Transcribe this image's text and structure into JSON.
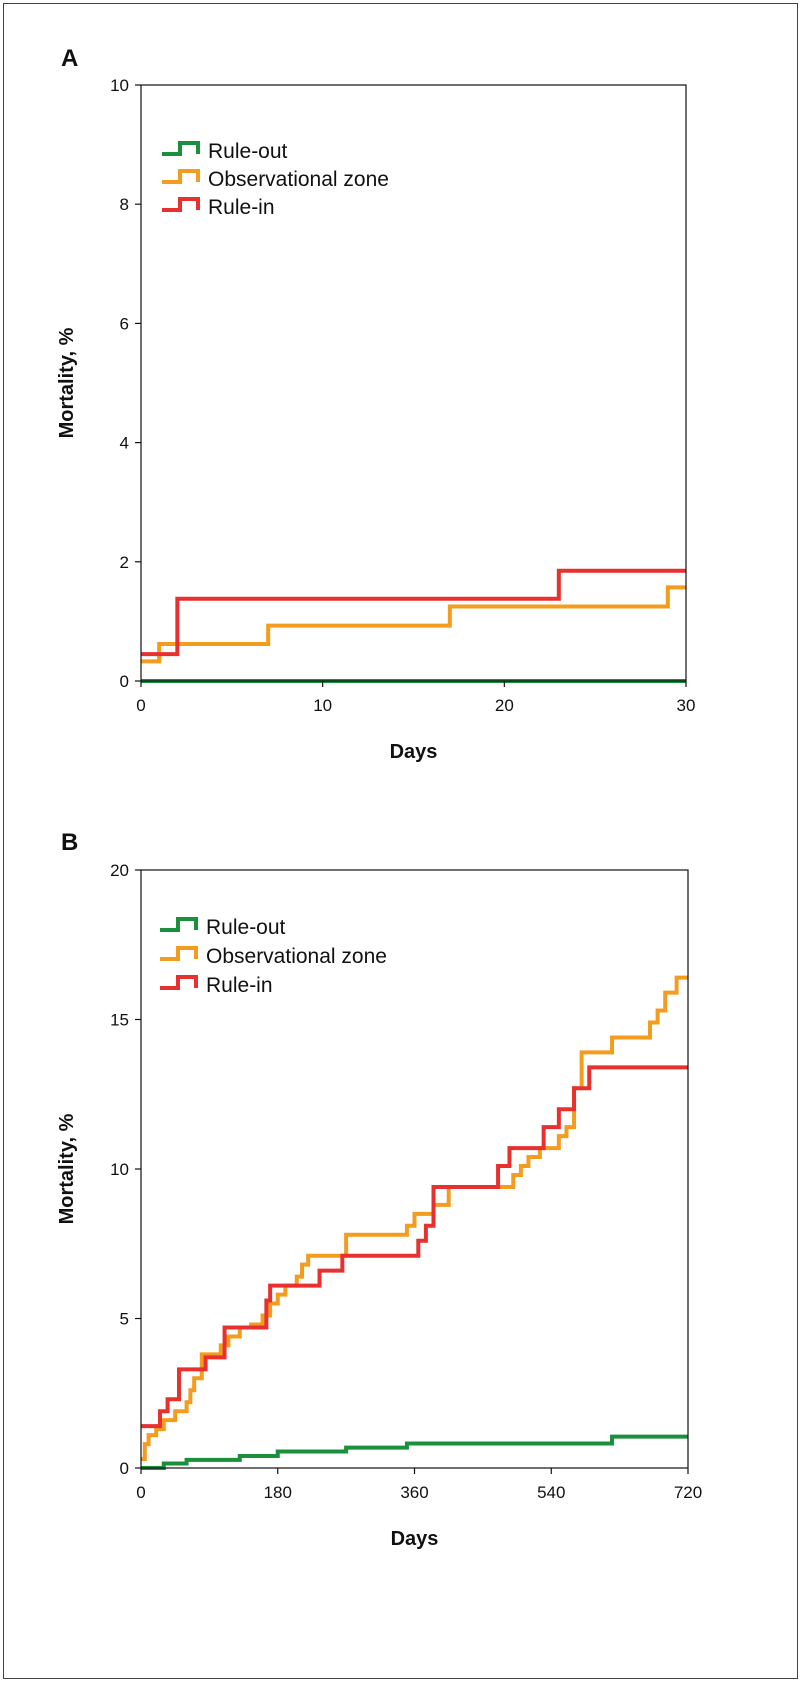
{
  "chart_data": [
    {
      "panel_label": "A",
      "type": "line",
      "step": true,
      "xlabel": "Days",
      "ylabel": "Mortality, %",
      "xlim": [
        0,
        30
      ],
      "ylim": [
        0,
        10
      ],
      "xticks": [
        0,
        10,
        20,
        30
      ],
      "yticks": [
        0,
        2,
        4,
        6,
        8,
        10
      ],
      "grid": false,
      "legend_position": "top-left",
      "series": [
        {
          "name": "Rule-out",
          "color": "#1a8f3c",
          "x": [
            0,
            30
          ],
          "y": [
            0,
            0
          ]
        },
        {
          "name": "Observational zone",
          "color": "#f39c1e",
          "x": [
            0,
            1,
            7,
            17,
            29,
            30
          ],
          "y": [
            0.33,
            0.62,
            0.93,
            1.25,
            1.57,
            1.57
          ]
        },
        {
          "name": "Rule-in",
          "color": "#e8312e",
          "x": [
            0,
            2,
            23,
            30
          ],
          "y": [
            0.45,
            1.38,
            1.85,
            1.85
          ]
        }
      ]
    },
    {
      "panel_label": "B",
      "type": "line",
      "step": true,
      "xlabel": "Days",
      "ylabel": "Mortality, %",
      "xlim": [
        0,
        720
      ],
      "ylim": [
        0,
        20
      ],
      "xticks": [
        0,
        180,
        360,
        540,
        720
      ],
      "yticks": [
        0,
        5,
        10,
        15,
        20
      ],
      "grid": false,
      "legend_position": "top-left",
      "series": [
        {
          "name": "Rule-out",
          "color": "#1a8f3c",
          "x": [
            0,
            30,
            60,
            130,
            180,
            270,
            350,
            620,
            720
          ],
          "y": [
            0,
            0.15,
            0.27,
            0.4,
            0.55,
            0.68,
            0.82,
            1.05,
            1.05
          ]
        },
        {
          "name": "Observational zone",
          "color": "#f39c1e",
          "x": [
            0,
            5,
            10,
            20,
            30,
            45,
            60,
            65,
            70,
            80,
            105,
            115,
            130,
            145,
            160,
            170,
            180,
            190,
            205,
            212,
            220,
            240,
            270,
            350,
            360,
            370,
            385,
            405,
            480,
            490,
            500,
            510,
            525,
            550,
            560,
            570,
            580,
            620,
            670,
            680,
            690,
            705,
            720
          ],
          "y": [
            0.3,
            0.8,
            1.1,
            1.3,
            1.6,
            1.9,
            2.2,
            2.6,
            3.0,
            3.8,
            4.1,
            4.4,
            4.7,
            4.8,
            5.1,
            5.5,
            5.8,
            6.1,
            6.4,
            6.8,
            7.1,
            7.1,
            7.8,
            8.1,
            8.5,
            8.5,
            8.8,
            9.4,
            9.4,
            9.8,
            10.1,
            10.4,
            10.7,
            11.1,
            11.4,
            12.7,
            13.9,
            14.4,
            14.9,
            15.3,
            15.9,
            16.4,
            16.4
          ]
        },
        {
          "name": "Rule-in",
          "color": "#e8312e",
          "x": [
            0,
            25,
            35,
            50,
            85,
            110,
            145,
            165,
            170,
            235,
            265,
            365,
            375,
            385,
            470,
            485,
            520,
            530,
            545,
            550,
            570,
            590,
            720
          ],
          "y": [
            1.4,
            1.9,
            2.3,
            3.3,
            3.7,
            4.7,
            4.7,
            5.6,
            6.1,
            6.6,
            7.1,
            7.6,
            8.1,
            9.4,
            10.1,
            10.7,
            10.7,
            11.4,
            11.4,
            12.0,
            12.7,
            13.4,
            13.4
          ]
        }
      ]
    }
  ]
}
